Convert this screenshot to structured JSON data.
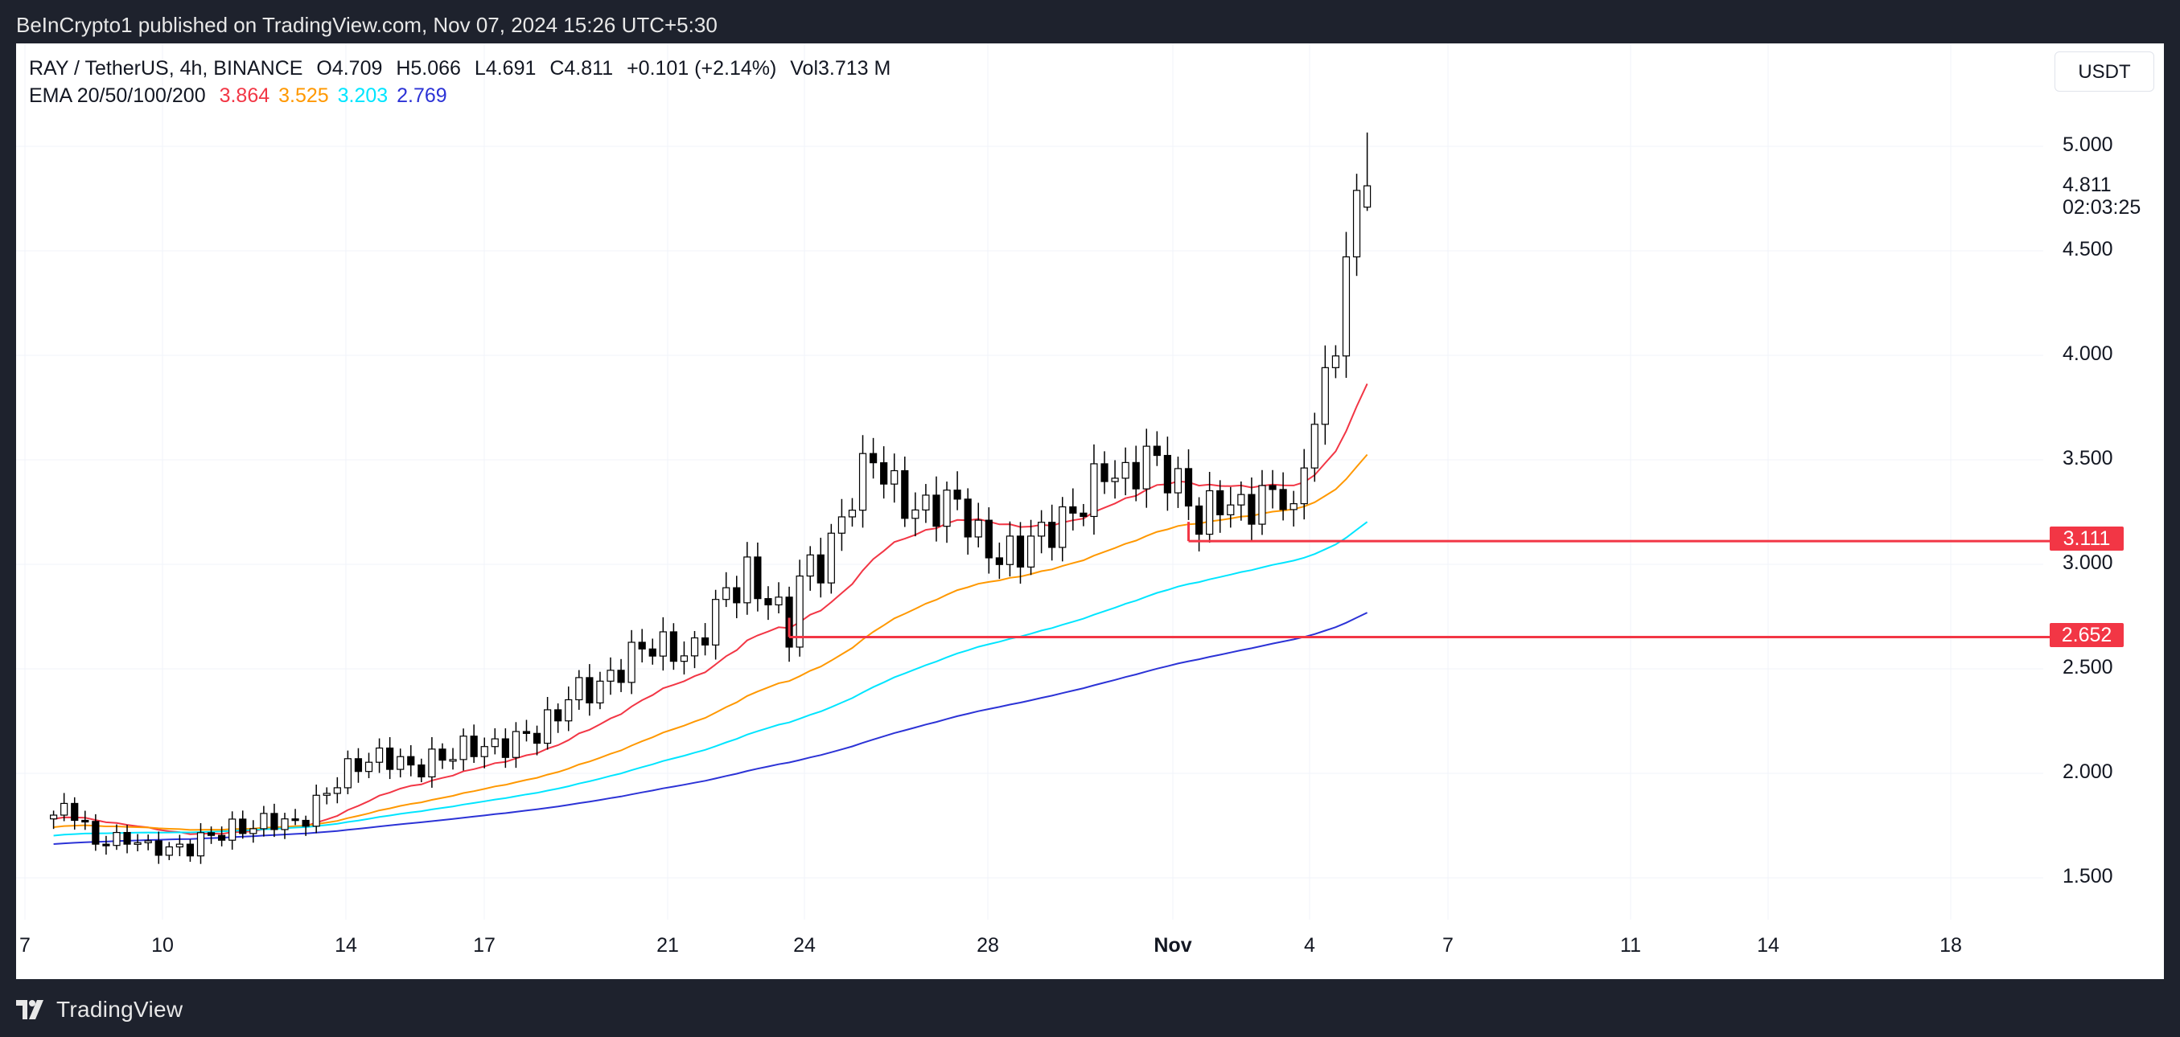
{
  "header": {
    "published_text": "BeInCrypto1 published on TradingView.com, Nov 07, 2024 15:26 UTC+5:30"
  },
  "legend": {
    "symbol": "RAY / TetherUS, 4h, BINANCE",
    "open": "O4.709",
    "high": "H5.066",
    "low": "L4.691",
    "close": "C4.811",
    "change": "+0.101 (+2.14%)",
    "volume": "Vol3.713 M",
    "ema_label": "EMA 20/50/100/200",
    "ema20": "3.864",
    "ema50": "3.525",
    "ema100": "3.203",
    "ema200": "2.769"
  },
  "toolbar": {
    "currency": "USDT"
  },
  "price_axis": {
    "ticks": [
      "5.000",
      "4.500",
      "4.000",
      "3.500",
      "3.000",
      "2.500",
      "2.000",
      "1.500"
    ],
    "last_price": "4.811",
    "countdown": "02:03:25",
    "levels": [
      "3.111",
      "2.652"
    ]
  },
  "time_axis": {
    "labels": [
      "7",
      "10",
      "14",
      "17",
      "21",
      "24",
      "28",
      "Nov",
      "4",
      "7",
      "11",
      "14",
      "18"
    ]
  },
  "footer": {
    "brand": "TradingView"
  },
  "colors": {
    "up": "#ffffff",
    "down": "#000000",
    "ema20": "#f23645",
    "ema50": "#ff9800",
    "ema100": "#00e5ff",
    "ema200": "#2c33d6",
    "level": "#f23645",
    "grid": "#f0f3fa"
  },
  "chart_data": {
    "type": "candlestick",
    "timeframe": "4h",
    "x_range": [
      "Oct 7",
      "Nov 7"
    ],
    "ylim": [
      1.35,
      5.2
    ],
    "y_ticks": [
      1.5,
      2.0,
      2.5,
      3.0,
      3.5,
      4.0,
      4.5,
      5.0
    ],
    "levels": [
      3.111,
      2.652
    ],
    "close_path": [
      [
        0,
        1.8
      ],
      [
        2,
        1.83
      ],
      [
        3,
        1.74
      ],
      [
        4,
        1.65
      ],
      [
        5,
        1.7
      ],
      [
        6,
        1.67
      ],
      [
        8,
        1.69
      ],
      [
        9,
        1.63
      ],
      [
        10,
        1.65
      ],
      [
        12,
        1.63
      ],
      [
        14,
        1.68
      ],
      [
        16,
        1.72
      ],
      [
        18,
        1.74
      ],
      [
        20,
        1.76
      ],
      [
        21,
        1.78
      ],
      [
        23,
        1.75
      ],
      [
        25,
        1.85
      ],
      [
        27,
        1.97
      ],
      [
        29,
        2.05
      ],
      [
        32,
        2.08
      ],
      [
        34,
        2.02
      ],
      [
        36,
        2.06
      ],
      [
        38,
        2.1
      ],
      [
        40,
        2.13
      ],
      [
        42,
        2.12
      ],
      [
        44,
        2.16
      ],
      [
        46,
        2.2
      ],
      [
        48,
        2.28
      ],
      [
        49,
        2.38
      ],
      [
        51,
        2.4
      ],
      [
        53,
        2.45
      ],
      [
        55,
        2.57
      ],
      [
        57,
        2.62
      ],
      [
        59,
        2.58
      ],
      [
        61,
        2.58
      ],
      [
        63,
        2.8
      ],
      [
        65,
        2.9
      ],
      [
        66,
        2.96
      ],
      [
        67,
        2.85
      ],
      [
        68,
        2.86
      ],
      [
        70,
        2.66
      ],
      [
        71,
        2.95
      ],
      [
        73,
        3.0
      ],
      [
        75,
        3.2
      ],
      [
        76,
        3.35
      ],
      [
        78,
        3.52
      ],
      [
        80,
        3.35
      ],
      [
        82,
        3.25
      ],
      [
        84,
        3.28
      ],
      [
        86,
        3.3
      ],
      [
        88,
        3.12
      ],
      [
        90,
        3.03
      ],
      [
        92,
        3.07
      ],
      [
        94,
        3.15
      ],
      [
        96,
        3.2
      ],
      [
        98,
        3.3
      ],
      [
        100,
        3.46
      ],
      [
        102,
        3.4
      ],
      [
        104,
        3.52
      ],
      [
        106,
        3.44
      ],
      [
        108,
        3.3
      ],
      [
        109,
        3.2
      ],
      [
        111,
        3.31
      ],
      [
        113,
        3.26
      ],
      [
        115,
        3.32
      ],
      [
        117,
        3.35
      ],
      [
        118,
        3.2
      ],
      [
        119,
        3.5
      ],
      [
        120,
        3.72
      ],
      [
        121,
        3.83
      ],
      [
        122,
        4.1
      ],
      [
        123,
        4.45
      ],
      [
        124,
        4.7
      ],
      [
        125,
        4.811
      ]
    ],
    "series": [
      {
        "name": "EMA 20",
        "last": 3.864
      },
      {
        "name": "EMA 50",
        "last": 3.525
      },
      {
        "name": "EMA 100",
        "last": 3.203
      },
      {
        "name": "EMA 200",
        "last": 2.769
      }
    ]
  }
}
